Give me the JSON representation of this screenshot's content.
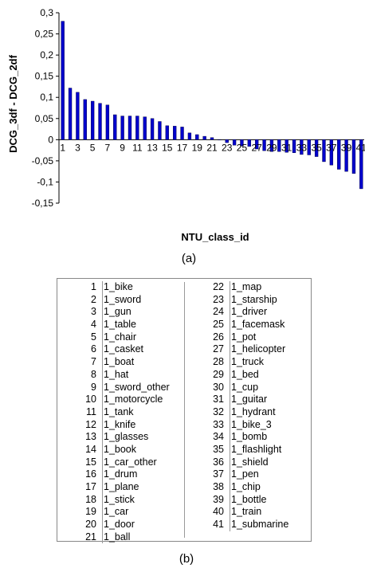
{
  "chart_data": {
    "type": "bar",
    "title": "",
    "xlabel": "NTU_class_id",
    "ylabel": "DCG_3df - DCG_2df",
    "ylim": [
      -0.15,
      0.3
    ],
    "yticks": [
      "0,3",
      "0,25",
      "0,2",
      "0,15",
      "0,1",
      "0,05",
      "0",
      "-0,05",
      "-0,1",
      "-0,15"
    ],
    "ytick_values": [
      0.3,
      0.25,
      0.2,
      0.15,
      0.1,
      0.05,
      0,
      -0.05,
      -0.1,
      -0.15
    ],
    "categories": [
      1,
      2,
      3,
      4,
      5,
      6,
      7,
      8,
      9,
      10,
      11,
      12,
      13,
      14,
      15,
      16,
      17,
      18,
      19,
      20,
      21,
      22,
      23,
      24,
      25,
      26,
      27,
      28,
      29,
      30,
      31,
      32,
      33,
      34,
      35,
      36,
      37,
      38,
      39,
      40,
      41
    ],
    "xtick_labels": [
      "1",
      "3",
      "5",
      "7",
      "9",
      "11",
      "13",
      "15",
      "17",
      "19",
      "21",
      "23",
      "25",
      "27",
      "29",
      "31",
      "33",
      "35",
      "37",
      "39",
      "41"
    ],
    "values": [
      0.28,
      0.122,
      0.112,
      0.095,
      0.091,
      0.086,
      0.082,
      0.059,
      0.056,
      0.056,
      0.056,
      0.054,
      0.05,
      0.043,
      0.033,
      0.032,
      0.03,
      0.016,
      0.012,
      0.008,
      0.005,
      0.0,
      -0.007,
      -0.013,
      -0.015,
      -0.016,
      -0.022,
      -0.026,
      -0.028,
      -0.028,
      -0.03,
      -0.031,
      -0.035,
      -0.036,
      -0.04,
      -0.052,
      -0.06,
      -0.07,
      -0.075,
      -0.08,
      -0.116
    ],
    "bar_color": "#0000CC",
    "grid": false,
    "legend": "none"
  },
  "captions": {
    "a": "(a)",
    "b": "(b)"
  },
  "legend_table": {
    "left": [
      {
        "id": "1",
        "name": "1_bike"
      },
      {
        "id": "2",
        "name": "1_sword"
      },
      {
        "id": "3",
        "name": "1_gun"
      },
      {
        "id": "4",
        "name": "1_table"
      },
      {
        "id": "5",
        "name": "1_chair"
      },
      {
        "id": "6",
        "name": "1_casket"
      },
      {
        "id": "7",
        "name": "1_boat"
      },
      {
        "id": "8",
        "name": "1_hat"
      },
      {
        "id": "9",
        "name": "1_sword_other"
      },
      {
        "id": "10",
        "name": "1_motorcycle"
      },
      {
        "id": "11",
        "name": "1_tank"
      },
      {
        "id": "12",
        "name": "1_knife"
      },
      {
        "id": "13",
        "name": "1_glasses"
      },
      {
        "id": "14",
        "name": "1_book"
      },
      {
        "id": "15",
        "name": "1_car_other"
      },
      {
        "id": "16",
        "name": "1_drum"
      },
      {
        "id": "17",
        "name": "1_plane"
      },
      {
        "id": "18",
        "name": "1_stick"
      },
      {
        "id": "19",
        "name": "1_car"
      },
      {
        "id": "20",
        "name": "1_door"
      },
      {
        "id": "21",
        "name": "1_ball"
      }
    ],
    "right": [
      {
        "id": "22",
        "name": "1_map"
      },
      {
        "id": "23",
        "name": "1_starship"
      },
      {
        "id": "24",
        "name": "1_driver"
      },
      {
        "id": "25",
        "name": "1_facemask"
      },
      {
        "id": "26",
        "name": "1_pot"
      },
      {
        "id": "27",
        "name": "1_helicopter"
      },
      {
        "id": "28",
        "name": "1_truck"
      },
      {
        "id": "29",
        "name": "1_bed"
      },
      {
        "id": "30",
        "name": "1_cup"
      },
      {
        "id": "31",
        "name": "1_guitar"
      },
      {
        "id": "32",
        "name": "1_hydrant"
      },
      {
        "id": "33",
        "name": "1_bike_3"
      },
      {
        "id": "34",
        "name": "1_bomb"
      },
      {
        "id": "35",
        "name": "1_flashlight"
      },
      {
        "id": "36",
        "name": "1_shield"
      },
      {
        "id": "37",
        "name": "1_pen"
      },
      {
        "id": "38",
        "name": "1_chip"
      },
      {
        "id": "39",
        "name": "1_bottle"
      },
      {
        "id": "40",
        "name": "1_train"
      },
      {
        "id": "41",
        "name": "1_submarine"
      }
    ]
  }
}
